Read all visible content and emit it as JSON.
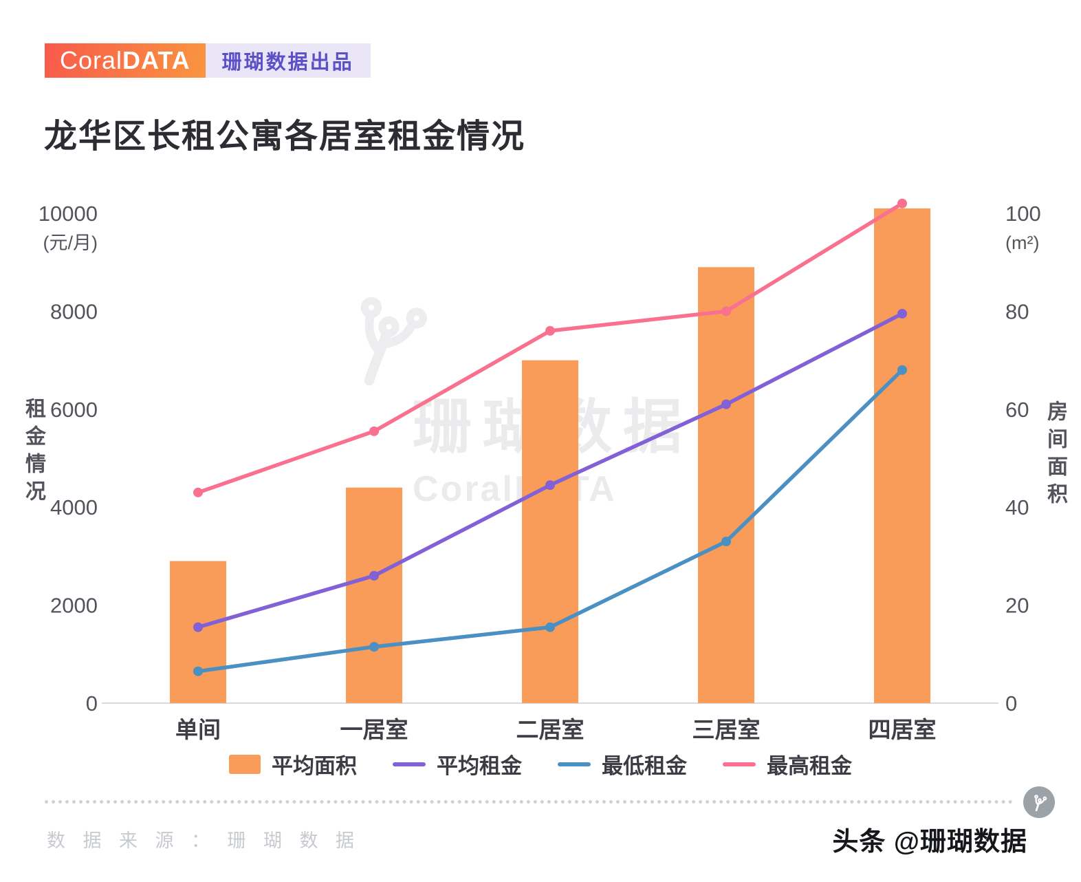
{
  "header": {
    "logo_light": "Coral",
    "logo_heavy": "DATA",
    "byline": "珊瑚数据出品"
  },
  "title": "龙华区长租公寓各居室租金情况",
  "watermark": {
    "line1": "珊瑚数据",
    "line2": "CoralDATA"
  },
  "chart_data": {
    "type": "combo-bar-line",
    "title": "龙华区长租公寓各居室租金情况",
    "categories": [
      "单间",
      "一居室",
      "二居室",
      "三居室",
      "四居室"
    ],
    "bar_series": {
      "name": "平均面积",
      "axis": "right",
      "color": "#F99B59",
      "values": [
        29,
        44,
        70,
        89,
        101
      ]
    },
    "line_series": [
      {
        "name": "平均租金",
        "axis": "left",
        "color": "#8161D5",
        "values": [
          1550,
          2600,
          4450,
          6100,
          7950
        ]
      },
      {
        "name": "最低租金",
        "axis": "left",
        "color": "#4A90C3",
        "values": [
          650,
          1150,
          1550,
          3300,
          6800
        ]
      },
      {
        "name": "最高租金",
        "axis": "left",
        "color": "#F9718F",
        "values": [
          4300,
          5550,
          7600,
          8000,
          10200
        ]
      }
    ],
    "left_axis": {
      "label": "租金情况",
      "unit": "(元/月)",
      "ticks": [
        0,
        2000,
        4000,
        6000,
        8000,
        10000
      ],
      "max": 10000
    },
    "right_axis": {
      "label": "房间面积",
      "unit": "(m²)",
      "ticks": [
        0,
        20,
        40,
        60,
        80,
        100
      ],
      "max": 100
    },
    "grid": "baseline-only",
    "legend_position": "bottom"
  },
  "colors": {
    "logo_gradient_start": "#F85A4B",
    "logo_gradient_end": "#F9953F",
    "byline_bg": "#EAE6F8",
    "byline_text": "#5B50C6",
    "axis_text": "#53535c",
    "title_text": "#2d2c33"
  },
  "footer": {
    "source": "数 据 来 源 ： 珊 瑚 数 据",
    "credit": "头条 @珊瑚数据"
  }
}
